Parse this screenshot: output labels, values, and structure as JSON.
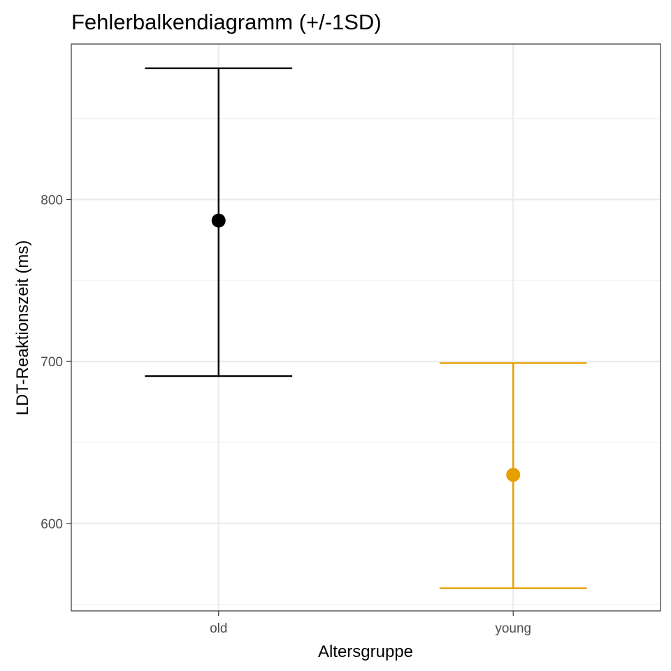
{
  "chart_data": {
    "type": "errorbar",
    "title": "Fehlerbalkendiagramm (+/-1SD)",
    "xlabel": "Altersgruppe",
    "ylabel": "LDT-Reaktionszeit (ms)",
    "categories": [
      "old",
      "young"
    ],
    "ylim": [
      546,
      896
    ],
    "yticks": [
      600,
      700,
      800
    ],
    "grid": true,
    "series": [
      {
        "category": "old",
        "mean": 787,
        "lower": 691,
        "upper": 881,
        "color": "#000000"
      },
      {
        "category": "young",
        "mean": 630,
        "lower": 560,
        "upper": 699,
        "color": "#E69F00"
      }
    ],
    "colors": {
      "grid_major": "#ebebeb",
      "grid_minor": "#f2f2f2",
      "panel_border": "#333333",
      "tick": "#333333"
    }
  }
}
